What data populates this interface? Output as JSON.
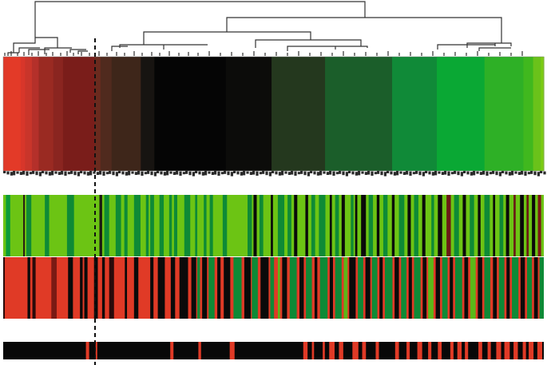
{
  "colors": {
    "background": "#ffffff",
    "dendrogram_line": "#333333",
    "label_strip": "#2a2a2a",
    "cutoff_line": "#111111"
  },
  "dendrogram": {
    "description_visible": false
  },
  "heatmap": {
    "bands": [
      {
        "width": 0.8,
        "color": "#e03a2a"
      },
      {
        "width": 2.8,
        "color": "#e33a28"
      },
      {
        "width": 0.9,
        "color": "#d8362a"
      },
      {
        "width": 1.4,
        "color": "#c9352a"
      },
      {
        "width": 1.4,
        "color": "#b4302a"
      },
      {
        "width": 3.0,
        "color": "#9a2a22"
      },
      {
        "width": 2.0,
        "color": "#8a2520"
      },
      {
        "width": 6.5,
        "color": "#7a1d1a"
      },
      {
        "width": 1.2,
        "color": "#6a2a1e"
      },
      {
        "width": 2.3,
        "color": "#502a1e"
      },
      {
        "width": 6.0,
        "color": "#3e261a"
      },
      {
        "width": 2.8,
        "color": "#171411"
      },
      {
        "width": 14.7,
        "color": "#050505"
      },
      {
        "width": 9.4,
        "color": "#0c0c0a"
      },
      {
        "width": 11.0,
        "color": "#24381e"
      },
      {
        "width": 13.8,
        "color": "#1b5e2a"
      },
      {
        "width": 9.2,
        "color": "#108a38"
      },
      {
        "width": 9.8,
        "color": "#0aa834"
      },
      {
        "width": 8.0,
        "color": "#2eb026"
      },
      {
        "width": 2.0,
        "color": "#40b81e"
      },
      {
        "width": 1.6,
        "color": "#6ac21a"
      },
      {
        "width": 0.6,
        "color": "#7ccc12"
      }
    ]
  },
  "bar_top": {
    "base": "#6cc414",
    "stripes": [
      [
        0.5,
        0.8,
        "#0a9a3a"
      ],
      [
        3.7,
        0.3,
        "#2a1a12"
      ],
      [
        4.3,
        0.9,
        "#0e8a36"
      ],
      [
        7.7,
        0.8,
        "#0e8a36"
      ],
      [
        11.8,
        1.3,
        "#0e8a36"
      ],
      [
        17.8,
        0.5,
        "#1a1a12"
      ],
      [
        18.7,
        0.9,
        "#0e8a36"
      ],
      [
        20.8,
        1.0,
        "#0e8a36"
      ],
      [
        22.4,
        0.6,
        "#0e8a36"
      ],
      [
        24.2,
        1.2,
        "#0e8a36"
      ],
      [
        26.4,
        0.5,
        "#0e8a36"
      ],
      [
        27.2,
        0.7,
        "#0e8a36"
      ],
      [
        28.9,
        0.8,
        "#0e8a36"
      ],
      [
        30.7,
        0.5,
        "#0e8a36"
      ],
      [
        31.6,
        0.6,
        "#0e8a36"
      ],
      [
        33.5,
        1.1,
        "#0e8a36"
      ],
      [
        35.5,
        0.4,
        "#0e8a36"
      ],
      [
        37.1,
        0.5,
        "#0e8a36"
      ],
      [
        38.2,
        0.6,
        "#0e8a36"
      ],
      [
        40.6,
        0.8,
        "#0e8a36"
      ],
      [
        45.2,
        0.8,
        "#0e8a36"
      ],
      [
        46.3,
        0.6,
        "#0a0a0a"
      ],
      [
        47.4,
        0.7,
        "#0e8a36"
      ],
      [
        49.5,
        0.4,
        "#0a0a0a"
      ],
      [
        50.8,
        1.2,
        "#0e8a36"
      ],
      [
        52.6,
        0.7,
        "#0e8a36"
      ],
      [
        53.8,
        0.6,
        "#0a0a0a"
      ],
      [
        55.9,
        0.5,
        "#0a0a0a"
      ],
      [
        57.0,
        0.7,
        "#0e8a36"
      ],
      [
        58.4,
        1.2,
        "#0e8a36"
      ],
      [
        60.4,
        0.4,
        "#0a0a0a"
      ],
      [
        61.4,
        0.7,
        "#0e8a36"
      ],
      [
        62.6,
        0.6,
        "#0a0a0a"
      ],
      [
        64.3,
        0.5,
        "#0e8a36"
      ],
      [
        65.1,
        0.4,
        "#0a0a0a"
      ],
      [
        66.2,
        0.9,
        "#0a0a0a"
      ],
      [
        67.6,
        0.8,
        "#0e8a36"
      ],
      [
        69.1,
        0.5,
        "#0a0a0a"
      ],
      [
        70.3,
        0.8,
        "#0e8a36"
      ],
      [
        71.9,
        0.5,
        "#0a0a0a"
      ],
      [
        73.2,
        1.0,
        "#0e8a36"
      ],
      [
        74.8,
        0.6,
        "#0a0a0a"
      ],
      [
        76.0,
        0.8,
        "#0e8a36"
      ],
      [
        77.5,
        0.6,
        "#0a0a0a"
      ],
      [
        79.2,
        0.5,
        "#0e8a36"
      ],
      [
        80.4,
        0.8,
        "#0a0a0a"
      ],
      [
        82.0,
        0.8,
        "#6a1a16"
      ],
      [
        83.4,
        0.9,
        "#0e8a36"
      ],
      [
        85.0,
        0.6,
        "#0a0a0a"
      ],
      [
        86.3,
        0.8,
        "#0e8a36"
      ],
      [
        87.8,
        0.5,
        "#0a0a0a"
      ],
      [
        89.0,
        1.0,
        "#0e8a36"
      ],
      [
        90.6,
        0.4,
        "#0a0a0a"
      ],
      [
        91.8,
        0.7,
        "#0e8a36"
      ],
      [
        93.0,
        0.6,
        "#0a0a0a"
      ],
      [
        94.4,
        0.4,
        "#6a1a16"
      ],
      [
        95.6,
        0.7,
        "#0a0a0a"
      ],
      [
        96.8,
        0.4,
        "#6a1a16"
      ],
      [
        97.8,
        0.6,
        "#0a0a0a"
      ],
      [
        98.9,
        0.6,
        "#7a1a16"
      ]
    ]
  },
  "bar_mid": {
    "base": "#e03a26",
    "stripes": [
      [
        0.0,
        0.3,
        "#2a0a0a"
      ],
      [
        4.5,
        0.5,
        "#0a0a0a"
      ],
      [
        5.4,
        0.6,
        "#2a0a0a"
      ],
      [
        8.9,
        1.0,
        "#7a1a14"
      ],
      [
        12.0,
        0.9,
        "#0a0a0a"
      ],
      [
        14.2,
        0.5,
        "#0a0a0a"
      ],
      [
        15.0,
        0.6,
        "#0a0a0a"
      ],
      [
        16.8,
        0.7,
        "#0a0a0a"
      ],
      [
        18.3,
        0.5,
        "#0a0a0a"
      ],
      [
        19.6,
        0.9,
        "#2a0a0a"
      ],
      [
        22.5,
        0.4,
        "#0a0a0a"
      ],
      [
        24.2,
        0.8,
        "#0a0a0a"
      ],
      [
        27.2,
        0.6,
        "#0a0a0a"
      ],
      [
        28.6,
        1.3,
        "#0a0a0a"
      ],
      [
        31.0,
        0.8,
        "#0a0a0a"
      ],
      [
        32.6,
        1.6,
        "#0a0a0a"
      ],
      [
        34.8,
        0.9,
        "#0a0a0a"
      ],
      [
        35.9,
        0.5,
        "#0e8a36"
      ],
      [
        36.8,
        0.9,
        "#0a0a0a"
      ],
      [
        38.0,
        1.1,
        "#0e8a36"
      ],
      [
        39.6,
        0.6,
        "#0a0a0a"
      ],
      [
        40.8,
        1.2,
        "#0a0a0a"
      ],
      [
        42.6,
        1.5,
        "#0e8a36"
      ],
      [
        44.6,
        1.2,
        "#0a0a0a"
      ],
      [
        46.0,
        1.1,
        "#0e8a36"
      ],
      [
        47.6,
        1.5,
        "#0a0a0a"
      ],
      [
        49.4,
        0.7,
        "#0e8a36"
      ],
      [
        50.8,
        0.4,
        "#5ab818"
      ],
      [
        51.6,
        0.9,
        "#0a0a0a"
      ],
      [
        53.0,
        1.3,
        "#0e8a36"
      ],
      [
        54.8,
        0.8,
        "#0a0a0a"
      ],
      [
        56.0,
        1.1,
        "#0e8a36"
      ],
      [
        57.6,
        0.5,
        "#0a0a0a"
      ],
      [
        58.6,
        1.4,
        "#0e8a36"
      ],
      [
        60.4,
        0.6,
        "#0a0a0a"
      ],
      [
        61.4,
        1.2,
        "#0e8a36"
      ],
      [
        63.0,
        0.7,
        "#5ab818"
      ],
      [
        64.0,
        1.2,
        "#0a0a0a"
      ],
      [
        65.6,
        1.0,
        "#0e8a36"
      ],
      [
        67.0,
        0.9,
        "#0a0a0a"
      ],
      [
        68.2,
        1.0,
        "#0e8a36"
      ],
      [
        69.6,
        0.6,
        "#0a0a0a"
      ],
      [
        70.6,
        1.4,
        "#0e8a36"
      ],
      [
        72.4,
        0.8,
        "#0a0a0a"
      ],
      [
        73.6,
        1.0,
        "#0e8a36"
      ],
      [
        75.0,
        0.6,
        "#0a0a0a"
      ],
      [
        76.0,
        1.2,
        "#0e8a36"
      ],
      [
        77.6,
        0.7,
        "#0a0a0a"
      ],
      [
        78.6,
        1.0,
        "#5ab818"
      ],
      [
        80.0,
        0.8,
        "#0a0a0a"
      ],
      [
        81.2,
        1.0,
        "#0e8a36"
      ],
      [
        82.6,
        0.6,
        "#0a0a0a"
      ],
      [
        83.6,
        1.3,
        "#0e8a36"
      ],
      [
        85.3,
        0.7,
        "#0a0a0a"
      ],
      [
        86.4,
        1.0,
        "#5ab818"
      ],
      [
        87.8,
        0.8,
        "#0a0a0a"
      ],
      [
        89.0,
        1.1,
        "#0e8a36"
      ],
      [
        90.6,
        0.7,
        "#0a0a0a"
      ],
      [
        91.7,
        1.0,
        "#0e8a36"
      ],
      [
        93.1,
        0.6,
        "#0a0a0a"
      ],
      [
        94.1,
        1.2,
        "#0e8a36"
      ],
      [
        95.7,
        0.8,
        "#0a0a0a"
      ],
      [
        96.9,
        0.9,
        "#0e8a36"
      ],
      [
        98.2,
        0.7,
        "#0a0a0a"
      ],
      [
        99.2,
        0.8,
        "#0e8a36"
      ]
    ]
  },
  "bar_bottom": {
    "base": "#080808",
    "stripes": [
      [
        15.3,
        0.6,
        "#e03a26"
      ],
      [
        17.1,
        0.3,
        "#e03a26"
      ],
      [
        30.9,
        0.6,
        "#e03a26"
      ],
      [
        36.1,
        0.5,
        "#e03a26"
      ],
      [
        41.9,
        0.9,
        "#e03a26"
      ],
      [
        55.5,
        0.8,
        "#e03a26"
      ],
      [
        57.1,
        0.4,
        "#e03a26"
      ],
      [
        59.1,
        0.4,
        "#e03a26"
      ],
      [
        60.3,
        1.0,
        "#e03a26"
      ],
      [
        62.1,
        0.8,
        "#e03a26"
      ],
      [
        64.6,
        1.1,
        "#e03a26"
      ],
      [
        66.4,
        0.7,
        "#e03a26"
      ],
      [
        68.9,
        0.6,
        "#e03a26"
      ],
      [
        72.5,
        0.7,
        "#e03a26"
      ],
      [
        74.6,
        0.6,
        "#e03a26"
      ],
      [
        76.6,
        0.9,
        "#e03a26"
      ],
      [
        78.6,
        0.6,
        "#e03a26"
      ],
      [
        80.4,
        0.7,
        "#e03a26"
      ],
      [
        82.7,
        0.6,
        "#e03a26"
      ],
      [
        84.0,
        0.8,
        "#e03a26"
      ],
      [
        85.4,
        0.6,
        "#e03a26"
      ],
      [
        87.9,
        0.7,
        "#e03a26"
      ],
      [
        89.6,
        0.6,
        "#e03a26"
      ],
      [
        91.2,
        0.9,
        "#e03a26"
      ],
      [
        92.7,
        1.0,
        "#e03a26"
      ],
      [
        94.4,
        0.8,
        "#e03a26"
      ],
      [
        96.1,
        0.6,
        "#e03a26"
      ],
      [
        97.2,
        0.9,
        "#e03a26"
      ],
      [
        98.8,
        0.9,
        "#e03a26"
      ]
    ]
  }
}
